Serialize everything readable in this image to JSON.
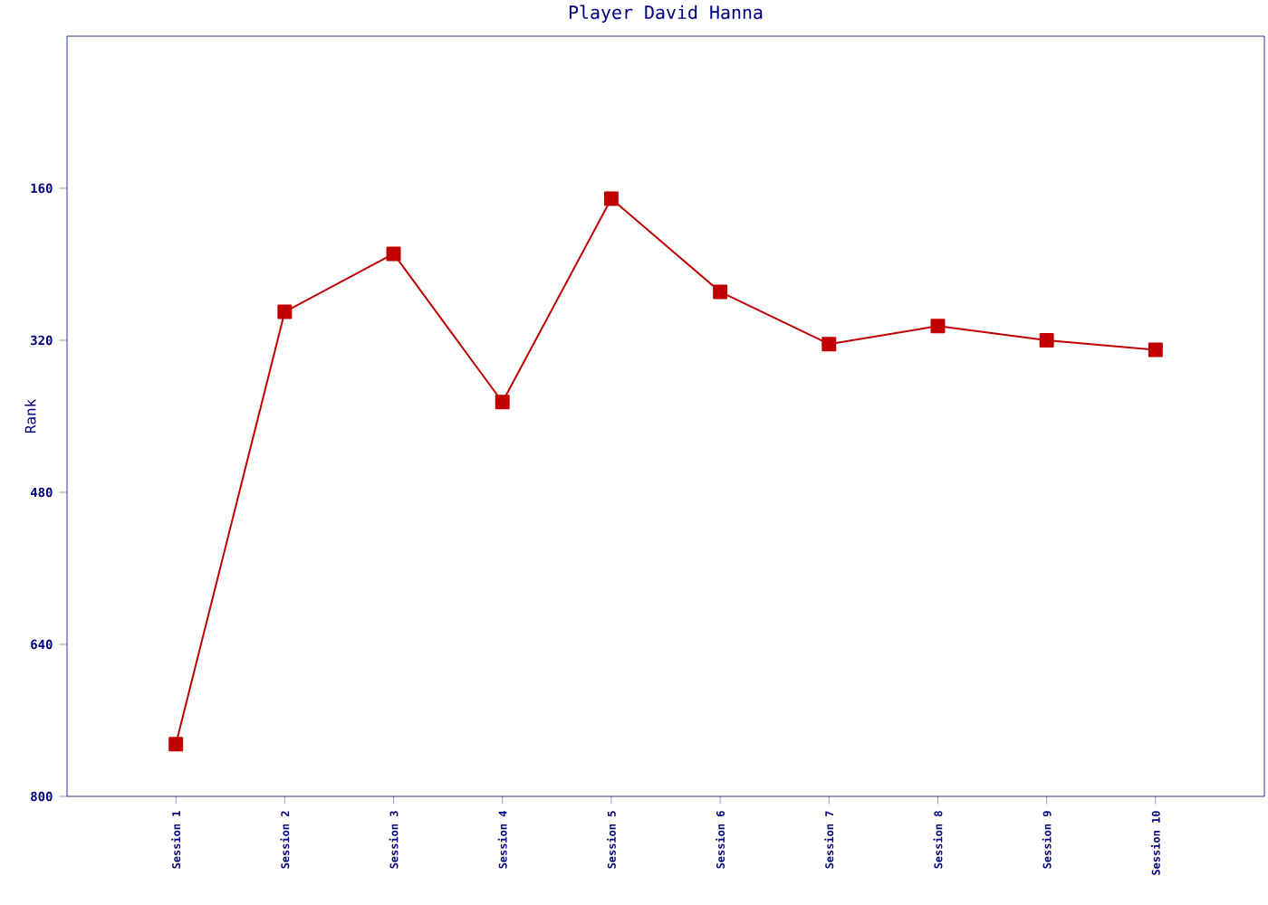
{
  "chart_data": {
    "type": "line",
    "title": "Player David Hanna",
    "ylabel": "Rank",
    "categories": [
      "Session 1",
      "Session 2",
      "Session 3",
      "Session 4",
      "Session 5",
      "Session 6",
      "Session 7",
      "Session 8",
      "Session 9",
      "Session 10"
    ],
    "series": [
      {
        "color": "#c00000",
        "values": [
          745,
          290,
          229,
          385,
          171,
          269,
          324,
          305,
          320,
          330
        ]
      }
    ],
    "ylim": [
      800,
      0
    ],
    "yticks": [
      160,
      320,
      480,
      640,
      800
    ],
    "grid": false,
    "marker": "square",
    "line_style": "solid"
  }
}
